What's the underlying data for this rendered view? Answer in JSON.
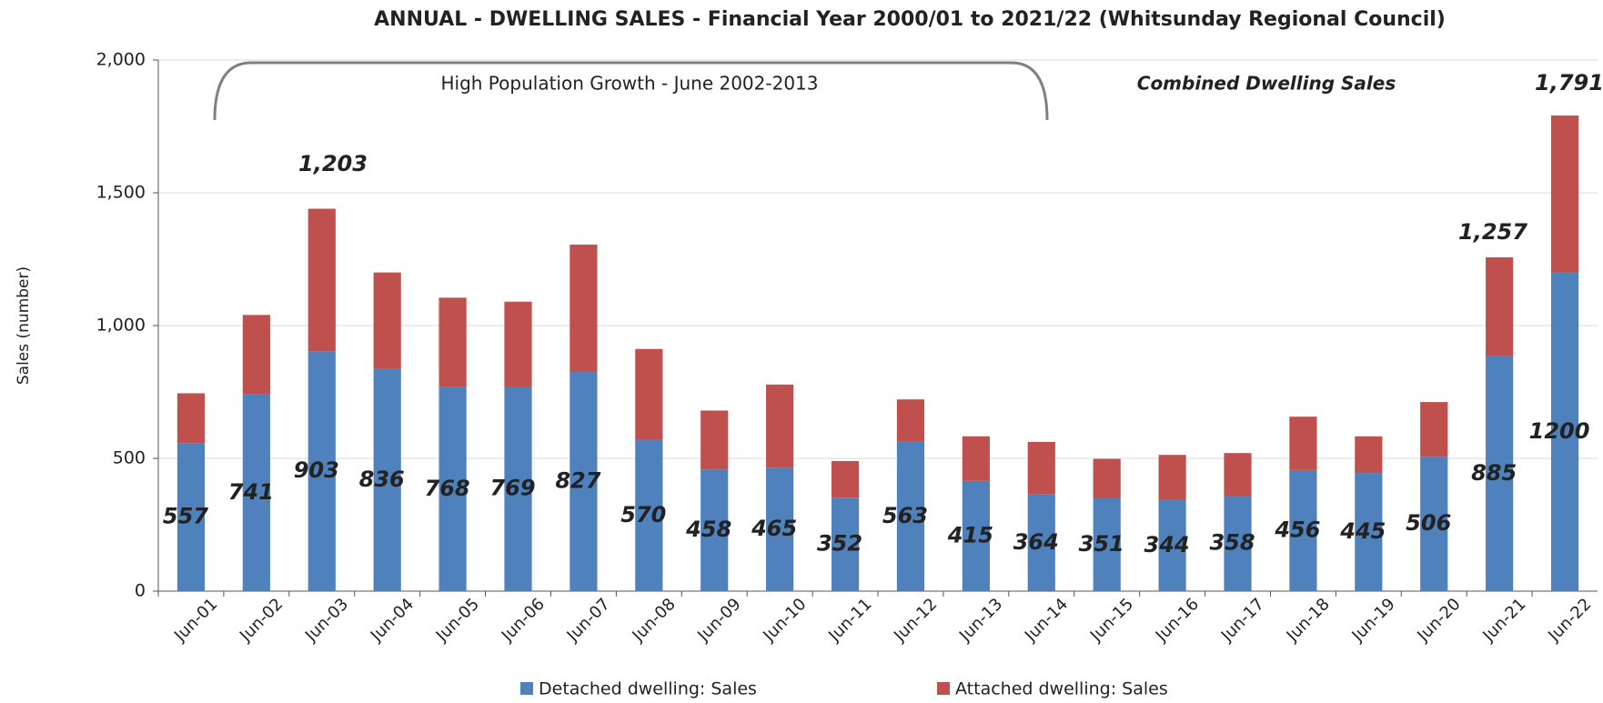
{
  "chart_data": {
    "type": "stacked-bar",
    "title": "ANNUAL - DWELLING SALES - Financial Year 2000/01 to 2021/22 (Whitsunday Regional Council)",
    "y_axis_label": "Sales (number)",
    "categories": [
      "Jun-01",
      "Jun-02",
      "Jun-03",
      "Jun-04",
      "Jun-05",
      "Jun-06",
      "Jun-07",
      "Jun-08",
      "Jun-09",
      "Jun-10",
      "Jun-11",
      "Jun-12",
      "Jun-13",
      "Jun-14",
      "Jun-15",
      "Jun-16",
      "Jun-17",
      "Jun-18",
      "Jun-19",
      "Jun-20",
      "Jun-21",
      "Jun-22"
    ],
    "series": [
      {
        "name": "Detached dwelling: Sales",
        "color": "#4f81bd",
        "values": [
          557,
          741,
          903,
          836,
          768,
          769,
          827,
          570,
          458,
          465,
          352,
          563,
          415,
          364,
          351,
          344,
          358,
          456,
          445,
          506,
          885,
          1200
        ]
      },
      {
        "name": "Attached dwelling: Sales",
        "color": "#c0504d",
        "values": [
          188,
          299,
          537,
          364,
          337,
          321,
          478,
          342,
          222,
          313,
          138,
          159,
          168,
          198,
          147,
          169,
          162,
          201,
          138,
          206,
          372,
          591
        ]
      }
    ],
    "ylim": [
      0,
      2000
    ],
    "yticks": [
      0,
      500,
      {
        "value": 1000,
        "label": "1,000"
      },
      {
        "value": 1500,
        "label": "1,500"
      },
      {
        "value": 2000,
        "label": "2,000"
      }
    ],
    "grid": true,
    "annotations": [
      "High Population Growth - June 2002-2013",
      "Combined Dwelling Sales",
      "1,203",
      "1,257",
      "1,791"
    ]
  }
}
